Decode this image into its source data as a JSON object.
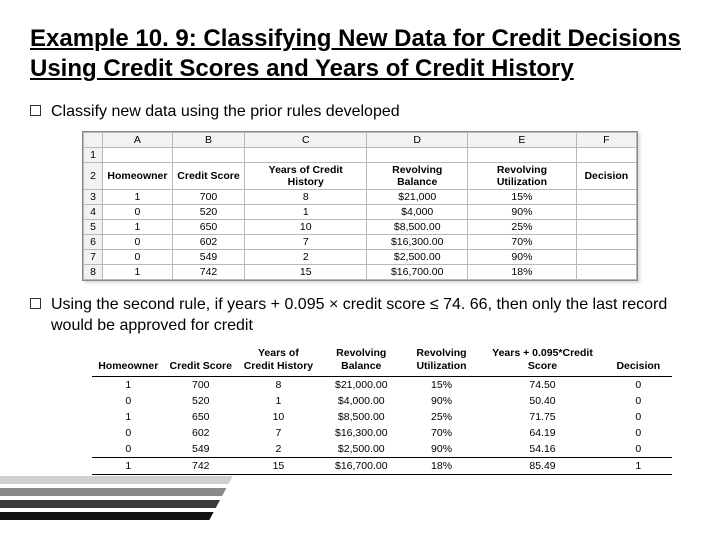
{
  "title": "Example 10. 9: Classifying New Data for Credit Decisions Using Credit Scores and Years of Credit History",
  "bullet1": "Classify new data using the prior rules developed",
  "bullet2": "Using the second rule, if years + 0.095 × credit score ≤ 74. 66, then only the last record would be approved for credit",
  "ss": {
    "cols": [
      "A",
      "B",
      "C",
      "D",
      "E",
      "F"
    ],
    "headers": [
      "Homeowner",
      "Credit Score",
      "Years of Credit History",
      "Revolving Balance",
      "Revolving Utilization",
      "Decision"
    ],
    "rows": [
      [
        "1",
        "700",
        "8",
        "$21,000",
        "15%",
        ""
      ],
      [
        "0",
        "520",
        "1",
        "$4,000",
        "90%",
        ""
      ],
      [
        "1",
        "650",
        "10",
        "$8,500.00",
        "25%",
        ""
      ],
      [
        "0",
        "602",
        "7",
        "$16,300.00",
        "70%",
        ""
      ],
      [
        "0",
        "549",
        "2",
        "$2,500.00",
        "90%",
        ""
      ],
      [
        "1",
        "742",
        "15",
        "$16,700.00",
        "18%",
        ""
      ]
    ],
    "widths": {
      "A": 70,
      "B": 80,
      "C": 140,
      "D": 110,
      "E": 120,
      "F": 62
    }
  },
  "t2": {
    "headers": [
      "Homeowner",
      "Credit Score",
      "Years of\nCredit History",
      "Revolving\nBalance",
      "Revolving\nUtilization",
      "Years + 0.095*Credit\nScore",
      "Decision"
    ],
    "rows": [
      [
        "1",
        "700",
        "8",
        "$21,000.00",
        "15%",
        "74.50",
        "0"
      ],
      [
        "0",
        "520",
        "1",
        "$4,000.00",
        "90%",
        "50.40",
        "0"
      ],
      [
        "1",
        "650",
        "10",
        "$8,500.00",
        "25%",
        "71.75",
        "0"
      ],
      [
        "0",
        "602",
        "7",
        "$16,300.00",
        "70%",
        "64.19",
        "0"
      ],
      [
        "0",
        "549",
        "2",
        "$2,500.00",
        "90%",
        "54.16",
        "0"
      ],
      [
        "1",
        "742",
        "15",
        "$16,700.00",
        "18%",
        "85.49",
        "1"
      ]
    ]
  },
  "colors": {
    "grid": "#b8b8b8",
    "ssHeader": "#f2f2f2",
    "text": "#000"
  }
}
